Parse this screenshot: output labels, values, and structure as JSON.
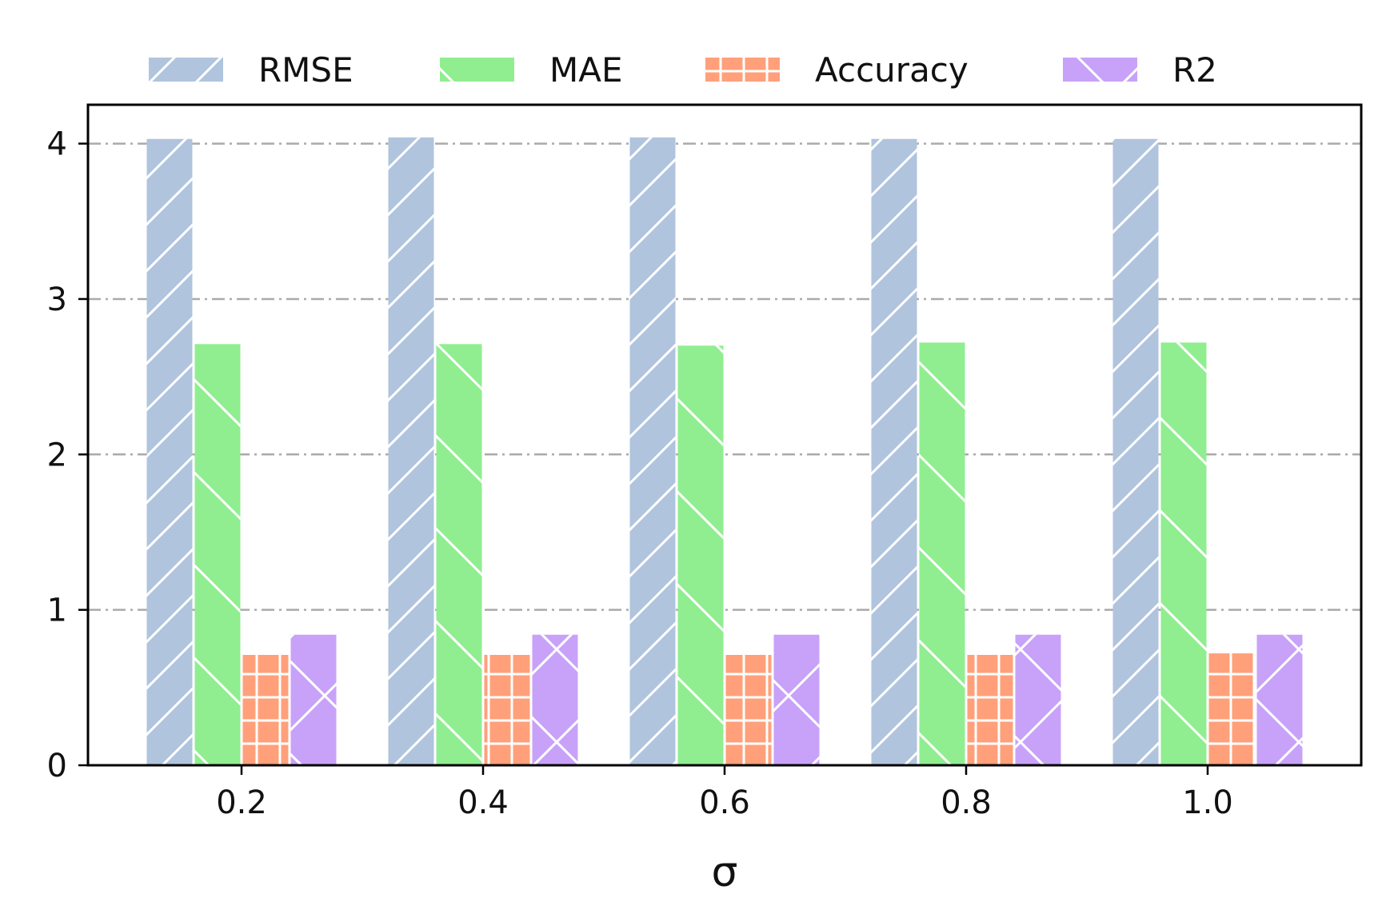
{
  "chart_data": {
    "type": "bar",
    "title": "",
    "xlabel": "σ",
    "ylabel": "",
    "categories": [
      "0.2",
      "0.4",
      "0.6",
      "0.8",
      "1.0"
    ],
    "ylim": [
      0,
      4.25
    ],
    "yticks": [
      0,
      1,
      2,
      3,
      4
    ],
    "grid": "horizontal dash-dot",
    "legend_position": "top, above plot, single row",
    "series": [
      {
        "name": "RMSE",
        "values": [
          4.03,
          4.04,
          4.04,
          4.03,
          4.03
        ],
        "color": "#b0c4de",
        "hatch": "diagonal-up"
      },
      {
        "name": "MAE",
        "values": [
          2.71,
          2.71,
          2.7,
          2.72,
          2.72
        ],
        "color": "#90ee90",
        "hatch": "diagonal-down"
      },
      {
        "name": "Accuracy",
        "values": [
          0.71,
          0.71,
          0.71,
          0.71,
          0.72
        ],
        "color": "#ffa07a",
        "hatch": "grid"
      },
      {
        "name": "R2",
        "values": [
          0.84,
          0.84,
          0.84,
          0.84,
          0.84
        ],
        "color": "#c8a2f8",
        "hatch": "cross"
      }
    ]
  }
}
